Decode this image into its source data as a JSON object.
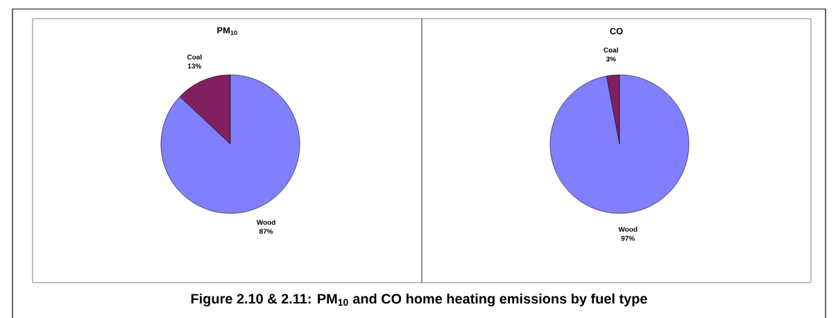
{
  "chart_data": [
    {
      "type": "pie",
      "title": "PM$_{10}$",
      "categories": [
        "Coal",
        "Wood"
      ],
      "values": [
        13,
        87
      ],
      "colors": [
        "#802060",
        "#8080ff"
      ],
      "value_labels": [
        "13%",
        "87%"
      ],
      "annotations": [
        "Figure 2.10 & 2.11:  PM$_{10}$ and CO home heating emissions by fuel type"
      ]
    },
    {
      "type": "pie",
      "title": "CO",
      "categories": [
        "Coal",
        "Wood"
      ],
      "values": [
        3,
        97
      ],
      "colors": [
        "#802060",
        "#8080ff"
      ],
      "value_labels": [
        "3%",
        "97%"
      ]
    }
  ]
}
